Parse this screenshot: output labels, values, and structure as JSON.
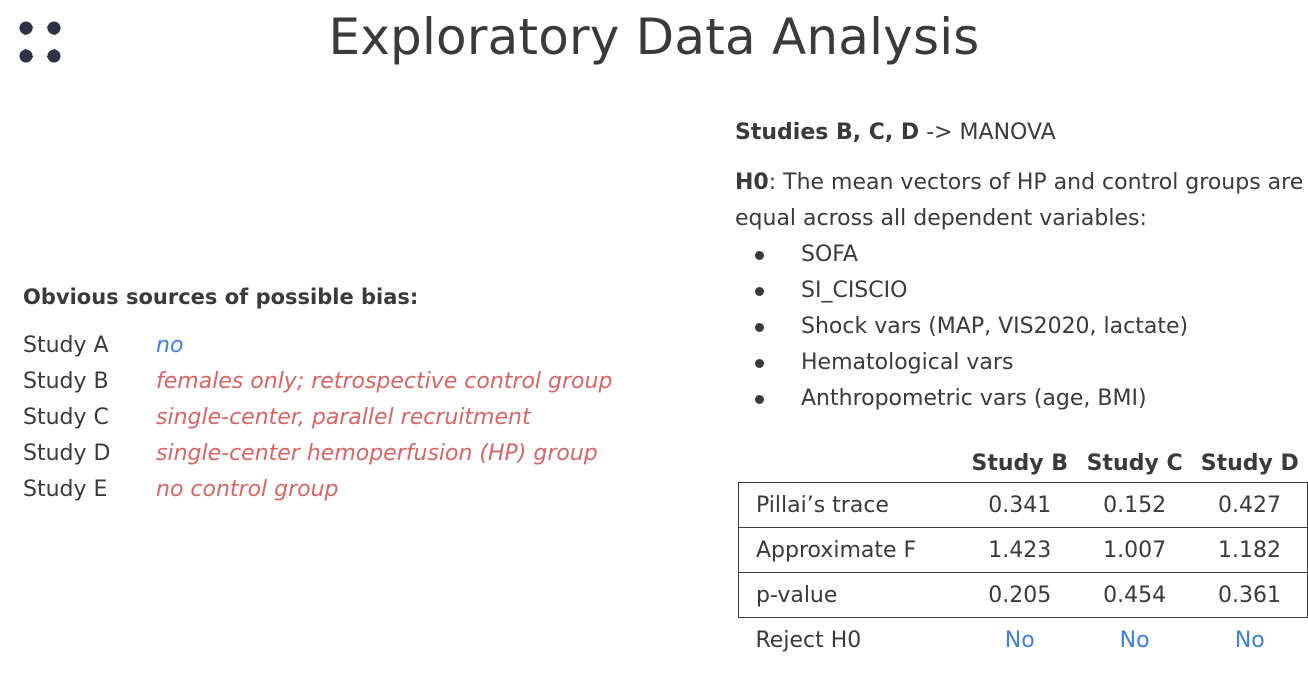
{
  "title": "Exploratory Data Analysis",
  "logo_icon": "four-dots-circle-logo",
  "bias": {
    "heading": "Obvious sources of possible bias:",
    "rows": [
      {
        "study": "Study A",
        "note": "no",
        "color": "#3f7fe0"
      },
      {
        "study": "Study B",
        "note": "females only; retrospective control group",
        "color": "#d96464"
      },
      {
        "study": "Study C",
        "note": "single-center, parallel recruitment",
        "color": "#d96464"
      },
      {
        "study": "Study D",
        "note": "single-center hemoperfusion (HP) group",
        "color": "#d96464"
      },
      {
        "study": "Study E",
        "note": "no control group",
        "color": "#d96464"
      }
    ]
  },
  "manova": {
    "studies_bold": "Studies B, C, D",
    "studies_rest": " -> MANOVA",
    "h0_label": "H0",
    "h0_text": ": The mean vectors of HP and control groups are equal across all dependent variables:",
    "variables": [
      "SOFA",
      "SI_CISCIO",
      "Shock vars (MAP, VIS2020, lactate)",
      "Hematological vars",
      "Anthropometric vars (age, BMI)"
    ]
  },
  "table": {
    "headers": [
      "",
      "Study B",
      "Study C",
      "Study D"
    ],
    "rows": [
      {
        "label": "Pillai’s trace",
        "values": [
          "0.341",
          "0.152",
          "0.427"
        ]
      },
      {
        "label": "Approximate F",
        "values": [
          "1.423",
          "1.007",
          "1.182"
        ]
      },
      {
        "label": "p-value",
        "values": [
          "0.205",
          "0.454",
          "0.361"
        ]
      },
      {
        "label": "Reject H0",
        "values": [
          "No",
          "No",
          "No"
        ]
      }
    ]
  }
}
